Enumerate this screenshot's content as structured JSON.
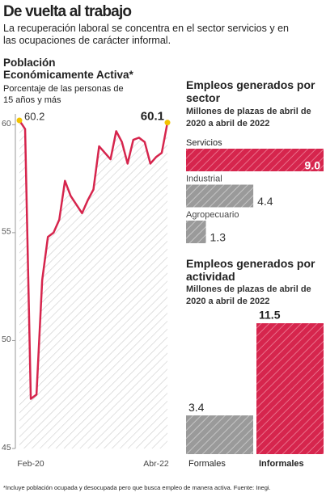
{
  "header": {
    "title": "De vuelta al trabajo",
    "subtitle": "La recuperación laboral se concentra en el sector servicios y en las ocupaciones de carácter informal."
  },
  "chart_data": [
    {
      "type": "line",
      "title": "Población Económicamente Activa*",
      "subtitle": "Porcentaje de las personas de 15 años y más",
      "categories": [
        "Feb-20",
        null,
        null,
        null,
        null,
        null,
        null,
        null,
        null,
        null,
        null,
        null,
        null,
        null,
        null,
        null,
        null,
        null,
        null,
        null,
        null,
        null,
        null,
        null,
        null,
        null,
        "Abr-22"
      ],
      "values": [
        60.2,
        59.8,
        47.3,
        47.5,
        52.8,
        54.8,
        55.0,
        55.6,
        57.4,
        56.7,
        56.3,
        55.9,
        56.5,
        57.0,
        59.0,
        58.7,
        58.4,
        59.7,
        59.2,
        58.2,
        59.3,
        59.4,
        59.2,
        58.2,
        58.5,
        58.7,
        60.1
      ],
      "color": "#d6254d",
      "ylim": [
        45,
        60.5
      ],
      "yticks": [
        45,
        50,
        55,
        60
      ]
    },
    {
      "type": "hbar",
      "title": "Empleos generados por sector",
      "subtitle": "Millones de plazas de abril de 2020 a abril de 2022",
      "categories": [
        "Servicios",
        "Industrial",
        "Agropecuario"
      ],
      "values": [
        9.0,
        4.4,
        1.3
      ],
      "value_labels": [
        "9.0",
        "4.4",
        "1.3"
      ],
      "colors": [
        "#d6254d",
        "#9a9a9a",
        "#9a9a9a"
      ]
    },
    {
      "type": "bar",
      "title": "Empleos generados por actividad",
      "subtitle": "Millones de plazas de abril de 2020 a abril de 2022",
      "categories": [
        "Formales",
        "Informales"
      ],
      "values": [
        3.4,
        11.5
      ],
      "colors": [
        "#9a9a9a",
        "#d6254d"
      ]
    }
  ],
  "footnote": "*Incluye población ocupada y desocupada pero que busca empleo de manera activa. Fuente: Inegi."
}
